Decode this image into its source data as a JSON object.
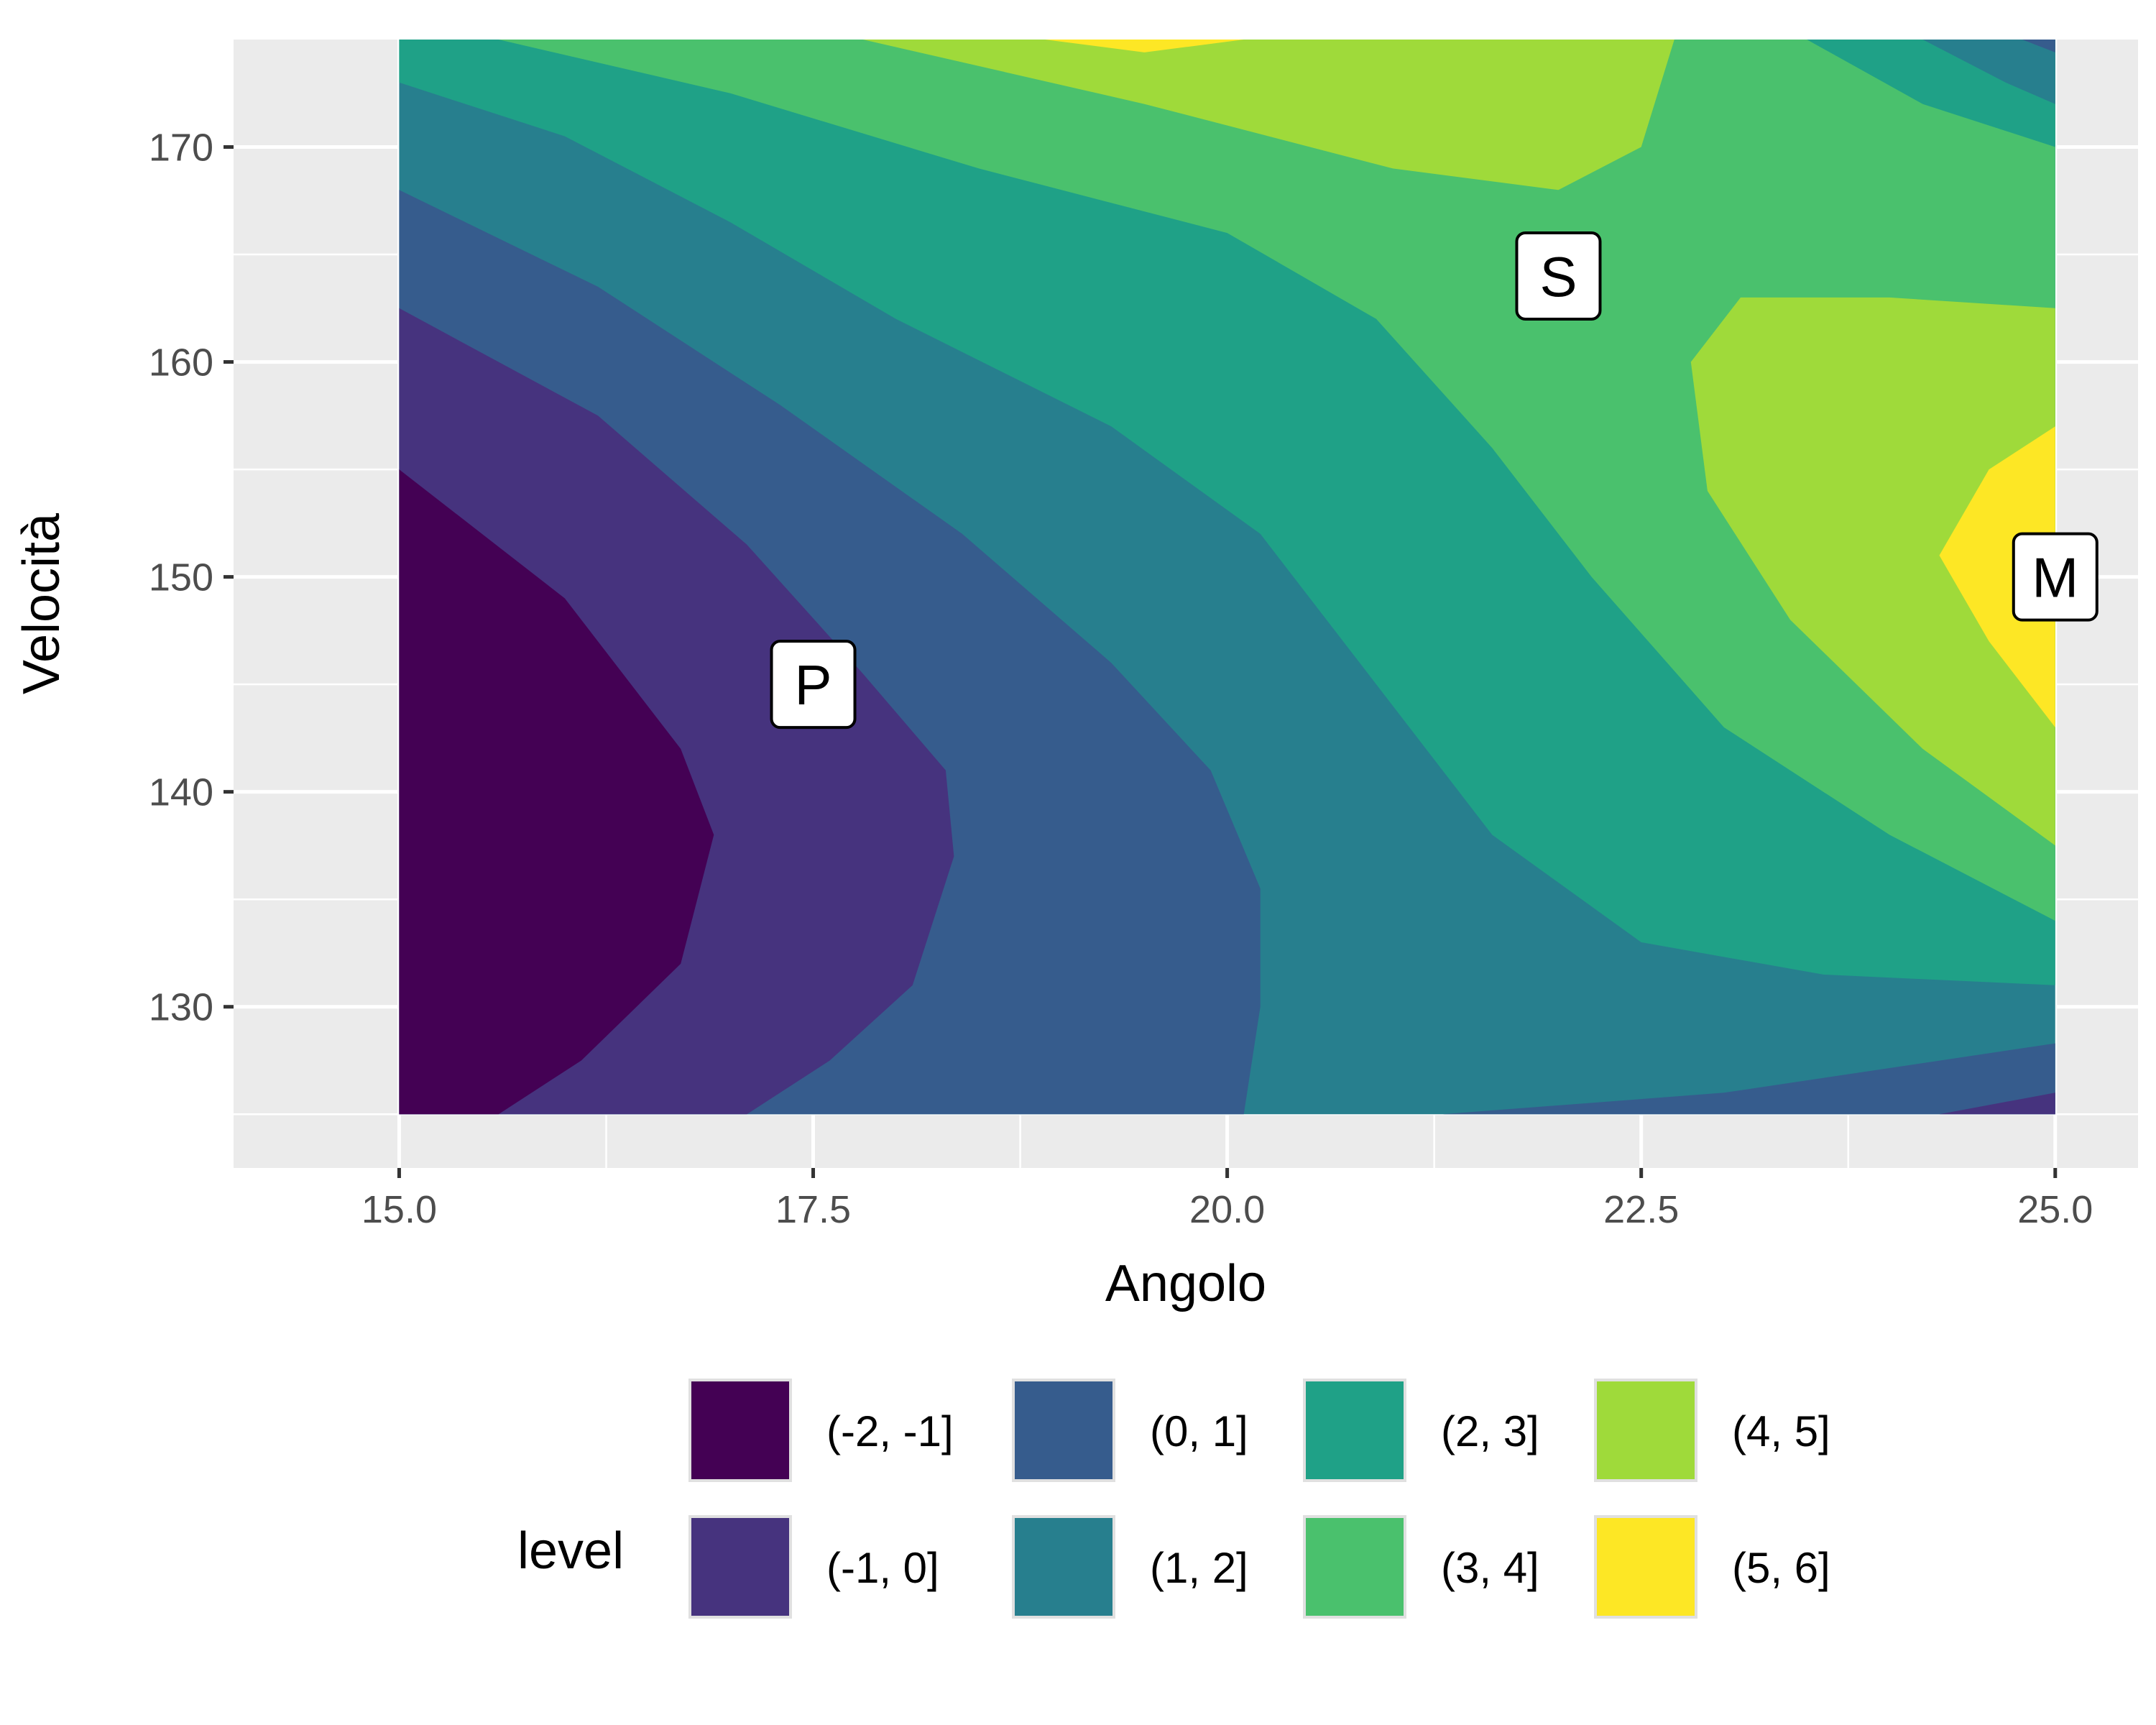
{
  "chart_data": {
    "type": "filled-contour",
    "title": "",
    "xlabel": "Angolo",
    "ylabel": "Velocità",
    "xlim": [
      14.0,
      25.5
    ],
    "ylim": [
      122.5,
      175.0
    ],
    "data_extent": {
      "x": [
        15.0,
        25.0
      ],
      "y": [
        125.0,
        175.0
      ]
    },
    "x_ticks": [
      15.0,
      17.5,
      20.0,
      22.5,
      25.0
    ],
    "x_tick_labels": [
      "15.0",
      "17.5",
      "20.0",
      "22.5",
      "25.0"
    ],
    "y_ticks": [
      130,
      140,
      150,
      160,
      170
    ],
    "y_tick_labels": [
      "130",
      "140",
      "150",
      "160",
      "170"
    ],
    "grid": true,
    "legend": {
      "title": "level",
      "position": "bottom",
      "entries": [
        {
          "label": "(-2, -1]",
          "color": "#440154"
        },
        {
          "label": "(-1, 0]",
          "color": "#46337E"
        },
        {
          "label": "(0, 1]",
          "color": "#365C8D"
        },
        {
          "label": "(1, 2]",
          "color": "#277F8E"
        },
        {
          "label": "(2, 3]",
          "color": "#1FA187"
        },
        {
          "label": "(3, 4]",
          "color": "#4AC16D"
        },
        {
          "label": "(4, 5]",
          "color": "#9FDA3A"
        },
        {
          "label": "(5, 6]",
          "color": "#FDE725"
        }
      ]
    },
    "annotations": [
      {
        "label": "P",
        "x": 17.5,
        "y": 145
      },
      {
        "label": "S",
        "x": 22.0,
        "y": 164
      },
      {
        "label": "M",
        "x": 25.0,
        "y": 150
      }
    ],
    "contour_boundaries": [
      {
        "level": -1,
        "points": [
          [
            15.0,
            155
          ],
          [
            16.0,
            149
          ],
          [
            16.7,
            142
          ],
          [
            16.9,
            138
          ],
          [
            16.7,
            132
          ],
          [
            16.1,
            127.5
          ],
          [
            15.6,
            125
          ]
        ]
      },
      {
        "level": 0,
        "points": [
          [
            15.0,
            162.5
          ],
          [
            16.2,
            157.5
          ],
          [
            17.1,
            151.5
          ],
          [
            17.8,
            145.5
          ],
          [
            18.3,
            141
          ],
          [
            18.35,
            137
          ],
          [
            18.1,
            131
          ],
          [
            17.6,
            127.5
          ],
          [
            17.1,
            125
          ]
        ]
      },
      {
        "level": 1,
        "points": [
          [
            15.0,
            168
          ],
          [
            16.2,
            163.5
          ],
          [
            17.3,
            158
          ],
          [
            18.4,
            152
          ],
          [
            19.3,
            146
          ],
          [
            19.9,
            141
          ],
          [
            20.2,
            135.5
          ],
          [
            20.2,
            130
          ],
          [
            20.1,
            125
          ]
        ]
      },
      {
        "level": 2,
        "points": [
          [
            15.0,
            173
          ],
          [
            16.0,
            170.5
          ],
          [
            17.0,
            166.5
          ],
          [
            18.0,
            162
          ],
          [
            19.3,
            157
          ],
          [
            20.2,
            152
          ],
          [
            20.9,
            145
          ],
          [
            21.6,
            138
          ],
          [
            22.5,
            133
          ],
          [
            23.6,
            131.5
          ],
          [
            25.0,
            131
          ]
        ]
      },
      {
        "level": 3,
        "points": [
          [
            15.6,
            175
          ],
          [
            17.0,
            172.5
          ],
          [
            18.5,
            169
          ],
          [
            20.0,
            166
          ],
          [
            20.9,
            162
          ],
          [
            21.6,
            156
          ],
          [
            22.2,
            150
          ],
          [
            23.0,
            143
          ],
          [
            24.0,
            138
          ],
          [
            25.0,
            134
          ]
        ]
      },
      {
        "level": 4,
        "points": [
          [
            17.8,
            175
          ],
          [
            19.5,
            172
          ],
          [
            21.0,
            169
          ],
          [
            22.0,
            168
          ],
          [
            22.5,
            170
          ],
          [
            22.7,
            175
          ]
        ]
      },
      {
        "level": 4,
        "points": [
          [
            25.0,
            162.5
          ],
          [
            24.0,
            163
          ],
          [
            23.1,
            163
          ],
          [
            22.8,
            160
          ],
          [
            22.9,
            154
          ],
          [
            23.4,
            148
          ],
          [
            24.2,
            142
          ],
          [
            25.0,
            137.5
          ]
        ]
      },
      {
        "level": 5,
        "points": [
          [
            18.9,
            175
          ],
          [
            19.5,
            174.4
          ],
          [
            20.1,
            175
          ]
        ]
      },
      {
        "level": 5,
        "points": [
          [
            25.0,
            157
          ],
          [
            24.6,
            155
          ],
          [
            24.3,
            151
          ],
          [
            24.6,
            147
          ],
          [
            25.0,
            143
          ]
        ]
      },
      {
        "level": 2,
        "points": [
          [
            23.5,
            175
          ],
          [
            24.2,
            172
          ],
          [
            25.0,
            170
          ]
        ]
      },
      {
        "level": 1,
        "points": [
          [
            24.2,
            175
          ],
          [
            24.7,
            173
          ],
          [
            25.0,
            172
          ]
        ]
      },
      {
        "level": 0,
        "points": [
          [
            24.8,
            175
          ],
          [
            25.0,
            174.4
          ]
        ]
      },
      {
        "level": 1,
        "points": [
          [
            21.3,
            125
          ],
          [
            23.0,
            126
          ],
          [
            25.0,
            128.3
          ]
        ]
      },
      {
        "level": 0,
        "points": [
          [
            24.3,
            125
          ],
          [
            25.0,
            126
          ]
        ]
      }
    ]
  }
}
